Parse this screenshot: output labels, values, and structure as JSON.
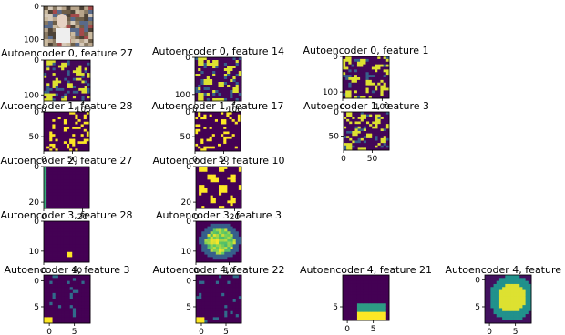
{
  "chart_data": [
    {
      "type": "heatmap",
      "panel": "input",
      "title": "",
      "xticks": [],
      "yticks": [
        "0",
        "100"
      ],
      "image": "original-photo-street-scene"
    },
    {
      "type": "heatmap",
      "panel": "ae0-f27",
      "title": "Autoencoder 0, feature 27",
      "xticks": [
        "0",
        "100"
      ],
      "yticks": [
        "0",
        "100"
      ],
      "colormap": "viridis",
      "pattern": "edges"
    },
    {
      "type": "heatmap",
      "panel": "ae0-f14",
      "title": "Autoencoder 0, feature 14",
      "xticks": [
        "0",
        "100"
      ],
      "yticks": [
        "0",
        "100"
      ],
      "colormap": "viridis",
      "pattern": "edges"
    },
    {
      "type": "heatmap",
      "panel": "ae0-f1",
      "title": "Autoencoder 0, feature 1",
      "xticks": [
        "0",
        "100"
      ],
      "yticks": [
        "0",
        "100"
      ],
      "colormap": "viridis",
      "pattern": "edges"
    },
    {
      "type": "heatmap",
      "panel": "ae1-f28",
      "title": "Autoencoder 1, feature 28",
      "xticks": [
        "0",
        "50"
      ],
      "yticks": [
        "0",
        "50"
      ],
      "colormap": "viridis",
      "pattern": "sparse"
    },
    {
      "type": "heatmap",
      "panel": "ae1-f17",
      "title": "Autoencoder 1, feature 17",
      "xticks": [
        "0",
        "50"
      ],
      "yticks": [
        "0",
        "50"
      ],
      "colormap": "viridis",
      "pattern": "sparse"
    },
    {
      "type": "heatmap",
      "panel": "ae1-f3",
      "title": "Autoencoder 1, feature 3",
      "xticks": [
        "0",
        "50"
      ],
      "yticks": [
        "0",
        "50"
      ],
      "colormap": "viridis",
      "pattern": "edges"
    },
    {
      "type": "heatmap",
      "panel": "ae2-f27",
      "title": "Autoencoder 2, feature 27",
      "xticks": [
        "0",
        "20"
      ],
      "yticks": [
        "0",
        "20"
      ],
      "colormap": "viridis",
      "pattern": "empty"
    },
    {
      "type": "heatmap",
      "panel": "ae2-f10",
      "title": "Autoencoder 2, feature 10",
      "xticks": [
        "0",
        "20"
      ],
      "yticks": [
        "0",
        "20"
      ],
      "colormap": "viridis",
      "pattern": "blobs"
    },
    {
      "type": "heatmap",
      "panel": "ae3-f28",
      "title": "Autoencoder 3, feature 28",
      "xticks": [
        "0",
        "10"
      ],
      "yticks": [
        "0",
        "10"
      ],
      "colormap": "viridis",
      "pattern": "spot"
    },
    {
      "type": "heatmap",
      "panel": "ae3-f3",
      "title": "Autoencoder 3, feature 3",
      "xticks": [
        "0",
        "10"
      ],
      "yticks": [
        "0",
        "10"
      ],
      "colormap": "viridis",
      "pattern": "blob"
    },
    {
      "type": "heatmap",
      "panel": "ae4-f3",
      "title": "Autoencoder 4, feature 3",
      "xticks": [
        "0",
        "5"
      ],
      "yticks": [
        "0",
        "5"
      ],
      "colormap": "viridis",
      "pattern": "corner"
    },
    {
      "type": "heatmap",
      "panel": "ae4-f22",
      "title": "Autoencoder 4, feature 22",
      "xticks": [
        "0",
        "5"
      ],
      "yticks": [
        "0",
        "5"
      ],
      "colormap": "viridis",
      "pattern": "corner"
    },
    {
      "type": "heatmap",
      "panel": "ae4-f21",
      "title": "Autoencoder 4, feature 21",
      "xticks": [
        "0",
        "5"
      ],
      "yticks": [
        "5"
      ],
      "colormap": "viridis",
      "pattern": "bottom-blob"
    },
    {
      "type": "heatmap",
      "panel": "ae4-f6",
      "title": "Autoencoder 4, feature 6",
      "xticks": [
        "0",
        "5"
      ],
      "yticks": [
        "0",
        "5"
      ],
      "colormap": "viridis",
      "pattern": "center-blob"
    }
  ],
  "colors": {
    "viridis_low": "#440154",
    "viridis_mid": "#21918c",
    "viridis_high": "#fde725"
  }
}
